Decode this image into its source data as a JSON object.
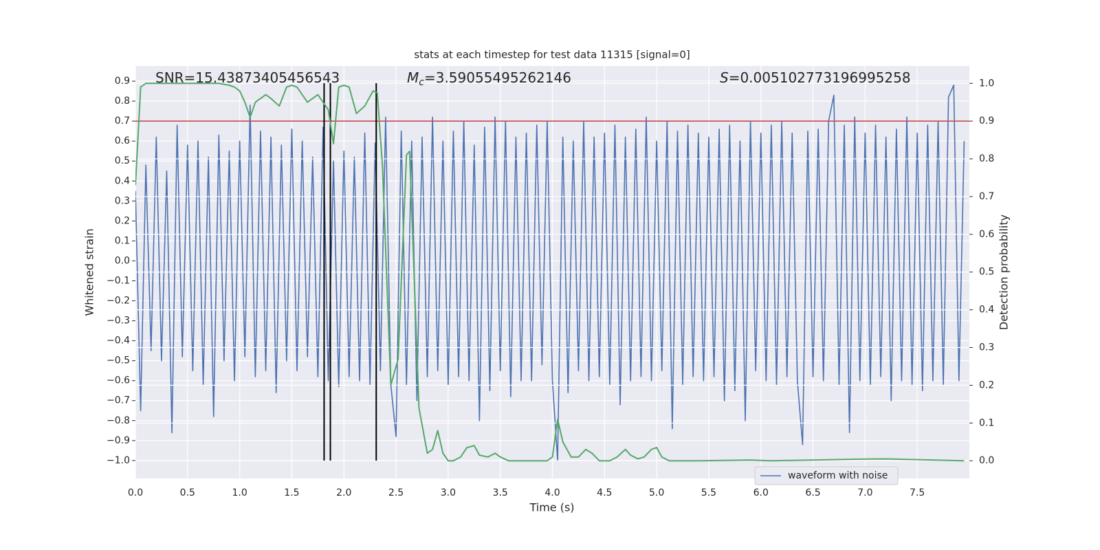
{
  "chart_data": {
    "type": "line",
    "title": "stats at each timestep for test data 11315 [signal=0]",
    "xlabel": "Time (s)",
    "ylabel": "Whitened strain",
    "y2label": "Detection probability",
    "annotations": [
      {
        "parts": [
          "SNR=15.43873405456543"
        ]
      },
      {
        "parts": [
          "M",
          "c",
          "=3.59055495262146"
        ]
      },
      {
        "parts": [
          "S",
          "=0.005102773196995258"
        ]
      }
    ],
    "xlim": [
      0,
      8.0
    ],
    "ylim": [
      -1.09,
      0.976
    ],
    "y2lim": [
      -0.047,
      1.046
    ],
    "grid": true,
    "background": "#eaeaf2",
    "legend_loc": "lower right",
    "xticks": [
      {
        "value": 0,
        "label": "0.0"
      },
      {
        "value": 0.5,
        "label": "0.5"
      },
      {
        "value": 1,
        "label": "1.0"
      },
      {
        "value": 1.5,
        "label": "1.5"
      },
      {
        "value": 2,
        "label": "2.0"
      },
      {
        "value": 2.5,
        "label": "2.5"
      },
      {
        "value": 3,
        "label": "3.0"
      },
      {
        "value": 3.5,
        "label": "3.5"
      },
      {
        "value": 4,
        "label": "4.0"
      },
      {
        "value": 4.5,
        "label": "4.5"
      },
      {
        "value": 5,
        "label": "5.0"
      },
      {
        "value": 5.5,
        "label": "5.5"
      },
      {
        "value": 6,
        "label": "6.0"
      },
      {
        "value": 6.5,
        "label": "6.5"
      },
      {
        "value": 7,
        "label": "7.0"
      },
      {
        "value": 7.5,
        "label": "7.5"
      }
    ],
    "yticks": [
      {
        "value": -1.0,
        "label": "−1.0"
      },
      {
        "value": -0.9,
        "label": "−0.9"
      },
      {
        "value": -0.8,
        "label": "−0.8"
      },
      {
        "value": -0.7,
        "label": "−0.7"
      },
      {
        "value": -0.6,
        "label": "−0.6"
      },
      {
        "value": -0.5,
        "label": "−0.5"
      },
      {
        "value": -0.4,
        "label": "−0.4"
      },
      {
        "value": -0.3,
        "label": "−0.3"
      },
      {
        "value": -0.2,
        "label": "−0.2"
      },
      {
        "value": -0.1,
        "label": "−0.1"
      },
      {
        "value": 0,
        "label": "0.0"
      },
      {
        "value": 0.1,
        "label": "0.1"
      },
      {
        "value": 0.2,
        "label": "0.2"
      },
      {
        "value": 0.3,
        "label": "0.3"
      },
      {
        "value": 0.4,
        "label": "0.4"
      },
      {
        "value": 0.5,
        "label": "0.5"
      },
      {
        "value": 0.6,
        "label": "0.6"
      },
      {
        "value": 0.7,
        "label": "0.7"
      },
      {
        "value": 0.8,
        "label": "0.8"
      },
      {
        "value": 0.9,
        "label": "0.9"
      }
    ],
    "y2ticks": [
      {
        "value": 0,
        "label": "0.0"
      },
      {
        "value": 0.1,
        "label": "0.1"
      },
      {
        "value": 0.2,
        "label": "0.2"
      },
      {
        "value": 0.3,
        "label": "0.3"
      },
      {
        "value": 0.4,
        "label": "0.4"
      },
      {
        "value": 0.5,
        "label": "0.5"
      },
      {
        "value": 0.6,
        "label": "0.6"
      },
      {
        "value": 0.7,
        "label": "0.7"
      },
      {
        "value": 0.8,
        "label": "0.8"
      },
      {
        "value": 0.9,
        "label": "0.9"
      },
      {
        "value": 1,
        "label": "1.0"
      }
    ],
    "hline": {
      "y": 0.7,
      "color": "#c44e52"
    },
    "vlines": {
      "x": [
        1.81,
        1.87,
        2.31
      ],
      "ymin": -1.0,
      "ymax": 0.89,
      "color": "#000000"
    },
    "series": [
      {
        "name": "waveform with noise",
        "color": "#4c72b0",
        "x": [
          0,
          0.05,
          0.1,
          0.15,
          0.2,
          0.25,
          0.3,
          0.35,
          0.4,
          0.45,
          0.5,
          0.55,
          0.6,
          0.65,
          0.7,
          0.75,
          0.8,
          0.85,
          0.9,
          0.95,
          1,
          1.05,
          1.1,
          1.15,
          1.2,
          1.25,
          1.3,
          1.35,
          1.4,
          1.45,
          1.5,
          1.55,
          1.6,
          1.65,
          1.7,
          1.75,
          1.8,
          1.85,
          1.9,
          1.95,
          2,
          2.05,
          2.1,
          2.15,
          2.2,
          2.25,
          2.3,
          2.35,
          2.4,
          2.45,
          2.5,
          2.55,
          2.6,
          2.65,
          2.7,
          2.75,
          2.8,
          2.85,
          2.9,
          2.95,
          3,
          3.05,
          3.1,
          3.15,
          3.2,
          3.25,
          3.3,
          3.35,
          3.4,
          3.45,
          3.5,
          3.55,
          3.6,
          3.65,
          3.7,
          3.75,
          3.8,
          3.85,
          3.9,
          3.95,
          4,
          4.05,
          4.1,
          4.15,
          4.2,
          4.25,
          4.3,
          4.35,
          4.4,
          4.45,
          4.5,
          4.55,
          4.6,
          4.65,
          4.7,
          4.75,
          4.8,
          4.85,
          4.9,
          4.95,
          5,
          5.05,
          5.1,
          5.15,
          5.2,
          5.25,
          5.3,
          5.35,
          5.4,
          5.45,
          5.5,
          5.55,
          5.6,
          5.65,
          5.7,
          5.75,
          5.8,
          5.85,
          5.9,
          5.95,
          6,
          6.05,
          6.1,
          6.15,
          6.2,
          6.25,
          6.3,
          6.35,
          6.4,
          6.45,
          6.5,
          6.55,
          6.6,
          6.65,
          6.7,
          6.75,
          6.8,
          6.85,
          6.9,
          6.95,
          7,
          7.05,
          7.1,
          7.15,
          7.2,
          7.25,
          7.3,
          7.35,
          7.4,
          7.45,
          7.5,
          7.55,
          7.6,
          7.65,
          7.7,
          7.75,
          7.8,
          7.85,
          7.9,
          7.95
        ],
        "values": [
          0.35,
          -0.75,
          0.48,
          -0.45,
          0.62,
          -0.5,
          0.45,
          -0.86,
          0.68,
          -0.48,
          0.58,
          -0.55,
          0.6,
          -0.62,
          0.52,
          -0.78,
          0.63,
          -0.5,
          0.55,
          -0.6,
          0.6,
          -0.48,
          0.78,
          -0.58,
          0.65,
          -0.55,
          0.62,
          -0.66,
          0.58,
          -0.5,
          0.66,
          -0.55,
          0.6,
          -0.48,
          0.52,
          -0.58,
          0.67,
          -0.6,
          0.5,
          -0.63,
          0.55,
          -0.58,
          0.52,
          -0.6,
          0.64,
          -0.62,
          0.59,
          -0.55,
          0.72,
          -0.62,
          -0.88,
          0.65,
          -0.62,
          0.6,
          -0.7,
          0.62,
          -0.58,
          0.72,
          -0.55,
          0.6,
          -0.62,
          0.65,
          -0.58,
          0.7,
          -0.6,
          0.58,
          -0.8,
          0.67,
          -0.65,
          0.72,
          -0.55,
          0.7,
          -0.68,
          0.62,
          -0.6,
          0.64,
          -0.6,
          0.68,
          -0.52,
          0.7,
          -0.6,
          -1.0,
          0.62,
          -0.66,
          0.6,
          -0.55,
          0.7,
          -0.6,
          0.62,
          -0.58,
          0.64,
          -0.62,
          0.68,
          -0.72,
          0.62,
          -0.6,
          0.66,
          -0.58,
          0.72,
          -0.6,
          0.6,
          -0.55,
          0.7,
          -0.84,
          0.65,
          -0.62,
          0.68,
          -0.58,
          0.64,
          -0.6,
          0.62,
          -0.58,
          0.66,
          -0.7,
          0.68,
          -0.65,
          0.6,
          -0.8,
          0.7,
          -0.55,
          0.64,
          -0.6,
          0.68,
          -0.62,
          0.7,
          -0.58,
          0.64,
          -0.6,
          -0.92,
          0.65,
          -0.58,
          0.66,
          -0.6,
          0.7,
          0.83,
          -0.62,
          0.68,
          -0.86,
          0.72,
          -0.6,
          0.64,
          -0.62,
          0.68,
          -0.58,
          0.62,
          -0.7,
          0.66,
          -0.6,
          0.72,
          -0.62,
          0.64,
          -0.65,
          0.68,
          -0.6,
          0.7,
          -0.62,
          0.82,
          0.88,
          -0.6,
          0.6
        ]
      },
      {
        "color": "#55a868",
        "axis": "y2",
        "x": [
          0,
          0.05,
          0.1,
          0.2,
          0.4,
          0.6,
          0.8,
          0.9,
          0.95,
          1,
          1.05,
          1.1,
          1.15,
          1.25,
          1.3,
          1.38,
          1.45,
          1.5,
          1.55,
          1.65,
          1.7,
          1.75,
          1.85,
          1.9,
          1.95,
          2,
          2.05,
          2.12,
          2.2,
          2.28,
          2.32,
          2.37,
          2.45,
          2.52,
          2.6,
          2.63,
          2.72,
          2.8,
          2.85,
          2.9,
          2.95,
          3,
          3.05,
          3.12,
          3.18,
          3.25,
          3.3,
          3.38,
          3.45,
          3.5,
          3.58,
          3.7,
          3.95,
          4,
          4.05,
          4.1,
          4.18,
          4.25,
          4.32,
          4.38,
          4.45,
          4.55,
          4.62,
          4.7,
          4.75,
          4.82,
          4.88,
          4.95,
          5,
          5.05,
          5.12,
          5.4,
          5.9,
          6.1,
          6.9,
          7.2,
          7.95
        ],
        "values": [
          0.73,
          0.99,
          1.0,
          1.0,
          1.0,
          1.0,
          1.0,
          0.995,
          0.99,
          0.98,
          0.95,
          0.91,
          0.95,
          0.97,
          0.96,
          0.94,
          0.99,
          0.995,
          0.99,
          0.95,
          0.96,
          0.97,
          0.93,
          0.84,
          0.99,
          0.995,
          0.99,
          0.92,
          0.94,
          0.98,
          0.975,
          0.78,
          0.2,
          0.27,
          0.81,
          0.82,
          0.14,
          0.02,
          0.03,
          0.08,
          0.02,
          0.0,
          0.0,
          0.01,
          0.035,
          0.04,
          0.015,
          0.01,
          0.02,
          0.01,
          0.0,
          0.0,
          0.0,
          0.01,
          0.11,
          0.05,
          0.01,
          0.01,
          0.03,
          0.02,
          0.0,
          0.0,
          0.01,
          0.03,
          0.015,
          0.005,
          0.01,
          0.03,
          0.035,
          0.01,
          0.0,
          0.0,
          0.002,
          0.0,
          0.004,
          0.005,
          0.0
        ]
      }
    ]
  }
}
